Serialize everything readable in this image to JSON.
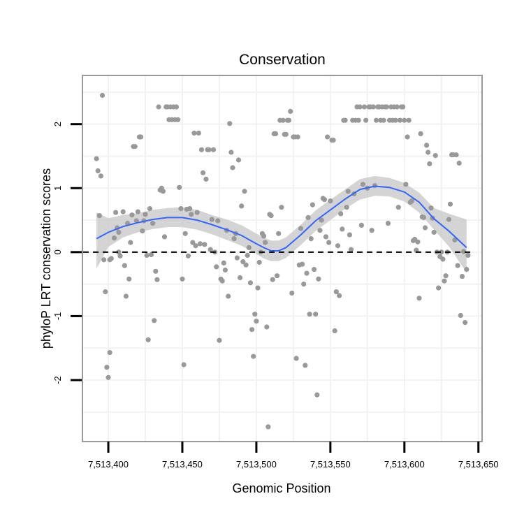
{
  "chart_data": {
    "type": "scatter",
    "title": "Conservation",
    "xlabel": "Genomic Position",
    "ylabel": "phyloP LRT conservation scores",
    "xlim": [
      7513383,
      7513652
    ],
    "ylim": [
      -2.95,
      2.75
    ],
    "x_ticks": [
      7513400,
      7513450,
      7513500,
      7513550,
      7513600,
      7513650
    ],
    "x_tick_labels": [
      "7,513,400",
      "7,513,450",
      "7,513,500",
      "7,513,550",
      "7,513,600",
      "7,513,650"
    ],
    "y_ticks": [
      -2,
      -1,
      0,
      1,
      2
    ],
    "y_tick_labels": [
      "-2",
      "-1",
      "0",
      "1",
      "2"
    ],
    "reference_line_y": 0,
    "colors": {
      "points": "#999999",
      "smooth_line": "#3366ff",
      "ribbon": "#cccccc",
      "panel_border": "#999999",
      "grid": "#f2f2f2"
    },
    "points": [
      [
        7513392,
        1.46
      ],
      [
        7513393,
        1.27
      ],
      [
        7513394,
        0.57
      ],
      [
        7513395,
        1.19
      ],
      [
        7513396,
        2.45
      ],
      [
        7513397,
        -0.12
      ],
      [
        7513398,
        -0.62
      ],
      [
        7513399,
        -1.8
      ],
      [
        7513400,
        -1.96
      ],
      [
        7513401,
        -1.57
      ],
      [
        7513401,
        -0.12
      ],
      [
        7513402,
        -0.1
      ],
      [
        7513404,
        0.22
      ],
      [
        7513405,
        0.62
      ],
      [
        7513406,
        0.38
      ],
      [
        7513407,
        0.31
      ],
      [
        7513407,
        0.0
      ],
      [
        7513408,
        -0.06
      ],
      [
        7513410,
        0.63
      ],
      [
        7513411,
        -0.21
      ],
      [
        7513412,
        -0.69
      ],
      [
        7513413,
        0.45
      ],
      [
        7513414,
        -0.42
      ],
      [
        7513415,
        0.15
      ],
      [
        7513416,
        0.58
      ],
      [
        7513417,
        1.65
      ],
      [
        7513418,
        1.65
      ],
      [
        7513419,
        0.49
      ],
      [
        7513420,
        0.63
      ],
      [
        7513421,
        1.8
      ],
      [
        7513422,
        1.8
      ],
      [
        7513423,
        0.33
      ],
      [
        7513424,
        0.49
      ],
      [
        7513425,
        0.59
      ],
      [
        7513426,
        -0.05
      ],
      [
        7513427,
        -1.37
      ],
      [
        7513428,
        0.68
      ],
      [
        7513429,
        -0.04
      ],
      [
        7513430,
        0.45
      ],
      [
        7513431,
        -1.07
      ],
      [
        7513432,
        -0.3
      ],
      [
        7513433,
        -0.43
      ],
      [
        7513434,
        2.27
      ],
      [
        7513435,
        0.97
      ],
      [
        7513436,
        1.0
      ],
      [
        7513437,
        0.95
      ],
      [
        7513438,
        0.24
      ],
      [
        7513439,
        2.27
      ],
      [
        7513440,
        2.27
      ],
      [
        7513441,
        2.07
      ],
      [
        7513442,
        2.27
      ],
      [
        7513443,
        2.07
      ],
      [
        7513444,
        2.27
      ],
      [
        7513445,
        2.07
      ],
      [
        7513446,
        2.27
      ],
      [
        7513447,
        2.07
      ],
      [
        7513448,
        1.01
      ],
      [
        7513449,
        0.68
      ],
      [
        7513450,
        -0.42
      ],
      [
        7513451,
        -1.76
      ],
      [
        7513452,
        0.29
      ],
      [
        7513453,
        0.67
      ],
      [
        7513454,
        -0.06
      ],
      [
        7513455,
        0.68
      ],
      [
        7513456,
        0.59
      ],
      [
        7513457,
        0.15
      ],
      [
        7513458,
        1.86
      ],
      [
        7513459,
        0.1
      ],
      [
        7513460,
        0.62
      ],
      [
        7513461,
        1.86
      ],
      [
        7513462,
        0.13
      ],
      [
        7513463,
        1.6
      ],
      [
        7513464,
        1.24
      ],
      [
        7513465,
        0.12
      ],
      [
        7513466,
        1.14
      ],
      [
        7513467,
        1.6
      ],
      [
        7513468,
        1.6
      ],
      [
        7513469,
        0.04
      ],
      [
        7513470,
        0.51
      ],
      [
        7513471,
        1.6
      ],
      [
        7513472,
        0.0
      ],
      [
        7513473,
        -0.23
      ],
      [
        7513474,
        0.49
      ],
      [
        7513475,
        -1.38
      ],
      [
        7513476,
        -0.42
      ],
      [
        7513477,
        -0.45
      ],
      [
        7513478,
        -0.17
      ],
      [
        7513479,
        -0.28
      ],
      [
        7513480,
        0.34
      ],
      [
        7513481,
        -0.69
      ],
      [
        7513482,
        2.01
      ],
      [
        7513483,
        1.56
      ],
      [
        7513484,
        1.32
      ],
      [
        7513485,
        0.21
      ],
      [
        7513486,
        0.29
      ],
      [
        7513487,
        -0.09
      ],
      [
        7513488,
        1.44
      ],
      [
        7513489,
        -0.4
      ],
      [
        7513490,
        0.72
      ],
      [
        7513491,
        -0.15
      ],
      [
        7513492,
        0.95
      ],
      [
        7513493,
        -0.2
      ],
      [
        7513494,
        -0.05
      ],
      [
        7513495,
        0.07
      ],
      [
        7513496,
        -0.48
      ],
      [
        7513497,
        -1.21
      ],
      [
        7513498,
        -1.63
      ],
      [
        7513499,
        -0.97
      ],
      [
        7513500,
        -1.08
      ],
      [
        7513501,
        -0.56
      ],
      [
        7513502,
        -0.16
      ],
      [
        7513503,
        0.0
      ],
      [
        7513504,
        0.29
      ],
      [
        7513505,
        0.25
      ],
      [
        7513506,
        0.15
      ],
      [
        7513507,
        -1.17
      ],
      [
        7513508,
        -2.73
      ],
      [
        7513509,
        0.59
      ],
      [
        7513510,
        0.57
      ],
      [
        7513511,
        -0.43
      ],
      [
        7513512,
        1.85
      ],
      [
        7513513,
        1.85
      ],
      [
        7513514,
        -0.37
      ],
      [
        7513515,
        0.29
      ],
      [
        7513516,
        2.06
      ],
      [
        7513517,
        0.7
      ],
      [
        7513518,
        2.06
      ],
      [
        7513519,
        1.84
      ],
      [
        7513520,
        1.84
      ],
      [
        7513521,
        2.06
      ],
      [
        7513522,
        2.06
      ],
      [
        7513523,
        2.2
      ],
      [
        7513524,
        -0.64
      ],
      [
        7513525,
        1.8
      ],
      [
        7513526,
        1.8
      ],
      [
        7513527,
        -1.66
      ],
      [
        7513528,
        1.8
      ],
      [
        7513529,
        -0.2
      ],
      [
        7513530,
        0.37
      ],
      [
        7513531,
        -0.19
      ],
      [
        7513532,
        -0.5
      ],
      [
        7513533,
        -1.77
      ],
      [
        7513534,
        -0.33
      ],
      [
        7513535,
        0.54
      ],
      [
        7513536,
        -0.97
      ],
      [
        7513537,
        0.21
      ],
      [
        7513538,
        0.74
      ],
      [
        7513539,
        -0.27
      ],
      [
        7513540,
        -0.97
      ],
      [
        7513541,
        -2.23
      ],
      [
        7513542,
        -0.42
      ],
      [
        7513543,
        0.34
      ],
      [
        7513544,
        0.5
      ],
      [
        7513545,
        0.84
      ],
      [
        7513546,
        0.82
      ],
      [
        7513547,
        0.24
      ],
      [
        7513548,
        1.8
      ],
      [
        7513549,
        0.15
      ],
      [
        7513550,
        0.8
      ],
      [
        7513551,
        1.75
      ],
      [
        7513552,
        1.75
      ],
      [
        7513553,
        -1.23
      ],
      [
        7513554,
        -0.62
      ],
      [
        7513555,
        0.1
      ],
      [
        7513556,
        -0.68
      ],
      [
        7513557,
        0.6
      ],
      [
        7513558,
        0.36
      ],
      [
        7513559,
        2.06
      ],
      [
        7513560,
        2.06
      ],
      [
        7513561,
        0.7
      ],
      [
        7513562,
        0.95
      ],
      [
        7513563,
        0.27
      ],
      [
        7513564,
        0.04
      ],
      [
        7513565,
        2.06
      ],
      [
        7513566,
        0.91
      ],
      [
        7513567,
        2.06
      ],
      [
        7513568,
        2.27
      ],
      [
        7513569,
        2.06
      ],
      [
        7513570,
        2.27
      ],
      [
        7513571,
        0.42
      ],
      [
        7513572,
        1.06
      ],
      [
        7513573,
        2.27
      ],
      [
        7513574,
        2.06
      ],
      [
        7513575,
        1.0
      ],
      [
        7513576,
        2.27
      ],
      [
        7513577,
        2.27
      ],
      [
        7513578,
        0.34
      ],
      [
        7513579,
        2.27
      ],
      [
        7513580,
        1.04
      ],
      [
        7513581,
        2.06
      ],
      [
        7513582,
        2.27
      ],
      [
        7513583,
        2.27
      ],
      [
        7513584,
        2.06
      ],
      [
        7513585,
        2.27
      ],
      [
        7513586,
        2.06
      ],
      [
        7513587,
        2.27
      ],
      [
        7513588,
        2.27
      ],
      [
        7513589,
        0.45
      ],
      [
        7513590,
        2.06
      ],
      [
        7513591,
        2.27
      ],
      [
        7513592,
        2.06
      ],
      [
        7513593,
        2.27
      ],
      [
        7513594,
        2.06
      ],
      [
        7513595,
        2.27
      ],
      [
        7513596,
        0.7
      ],
      [
        7513597,
        2.06
      ],
      [
        7513598,
        2.27
      ],
      [
        7513599,
        2.27
      ],
      [
        7513600,
        2.06
      ],
      [
        7513601,
        1.06
      ],
      [
        7513602,
        1.8
      ],
      [
        7513603,
        2.06
      ],
      [
        7513604,
        0.78
      ],
      [
        7513605,
        0.8
      ],
      [
        7513606,
        0.18
      ],
      [
        7513607,
        0.2
      ],
      [
        7513608,
        0.03
      ],
      [
        7513609,
        0.16
      ],
      [
        7513610,
        -0.72
      ],
      [
        7513611,
        1.85
      ],
      [
        7513612,
        0.55
      ],
      [
        7513613,
        0.54
      ],
      [
        7513614,
        0.38
      ],
      [
        7513615,
        1.67
      ],
      [
        7513616,
        1.56
      ],
      [
        7513617,
        1.38
      ],
      [
        7513618,
        0.69
      ],
      [
        7513619,
        0.53
      ],
      [
        7513620,
        0.31
      ],
      [
        7513621,
        1.51
      ],
      [
        7513622,
        0.0
      ],
      [
        7513623,
        -0.56
      ],
      [
        7513624,
        -0.07
      ],
      [
        7513625,
        0.0
      ],
      [
        7513626,
        -0.11
      ],
      [
        7513627,
        -0.45
      ],
      [
        7513628,
        -0.37
      ],
      [
        7513629,
        0.0
      ],
      [
        7513630,
        0.51
      ],
      [
        7513631,
        0.75
      ],
      [
        7513632,
        1.52
      ],
      [
        7513633,
        1.52
      ],
      [
        7513634,
        0.19
      ],
      [
        7513635,
        1.52
      ],
      [
        7513636,
        -0.21
      ],
      [
        7513637,
        1.39
      ],
      [
        7513638,
        -0.99
      ],
      [
        7513639,
        -0.38
      ],
      [
        7513640,
        0.01
      ],
      [
        7513641,
        -1.1
      ],
      [
        7513642,
        -0.27
      ],
      [
        7513643,
        -0.05
      ]
    ],
    "smooth": {
      "x": [
        7513392,
        7513400,
        7513410,
        7513420,
        7513430,
        7513440,
        7513450,
        7513460,
        7513470,
        7513480,
        7513490,
        7513500,
        7513505,
        7513510,
        7513515,
        7513520,
        7513530,
        7513540,
        7513550,
        7513560,
        7513570,
        7513580,
        7513590,
        7513600,
        7513610,
        7513620,
        7513630,
        7513642
      ],
      "y": [
        0.21,
        0.31,
        0.4,
        0.46,
        0.51,
        0.54,
        0.54,
        0.5,
        0.43,
        0.35,
        0.26,
        0.13,
        0.07,
        0.02,
        0.02,
        0.07,
        0.27,
        0.49,
        0.66,
        0.83,
        0.98,
        1.03,
        1.01,
        0.94,
        0.78,
        0.52,
        0.33,
        0.07
      ],
      "ymin": [
        -0.26,
        0.08,
        0.23,
        0.31,
        0.36,
        0.39,
        0.39,
        0.35,
        0.28,
        0.19,
        0.1,
        -0.03,
        -0.1,
        -0.14,
        -0.14,
        -0.09,
        0.11,
        0.33,
        0.5,
        0.68,
        0.82,
        0.88,
        0.87,
        0.79,
        0.62,
        0.35,
        0.09,
        -0.32
      ],
      "ymax": [
        0.62,
        0.53,
        0.58,
        0.61,
        0.66,
        0.69,
        0.7,
        0.66,
        0.58,
        0.51,
        0.42,
        0.29,
        0.23,
        0.18,
        0.18,
        0.23,
        0.43,
        0.65,
        0.82,
        0.98,
        1.14,
        1.19,
        1.16,
        1.08,
        0.93,
        0.69,
        0.6,
        0.51
      ]
    }
  }
}
